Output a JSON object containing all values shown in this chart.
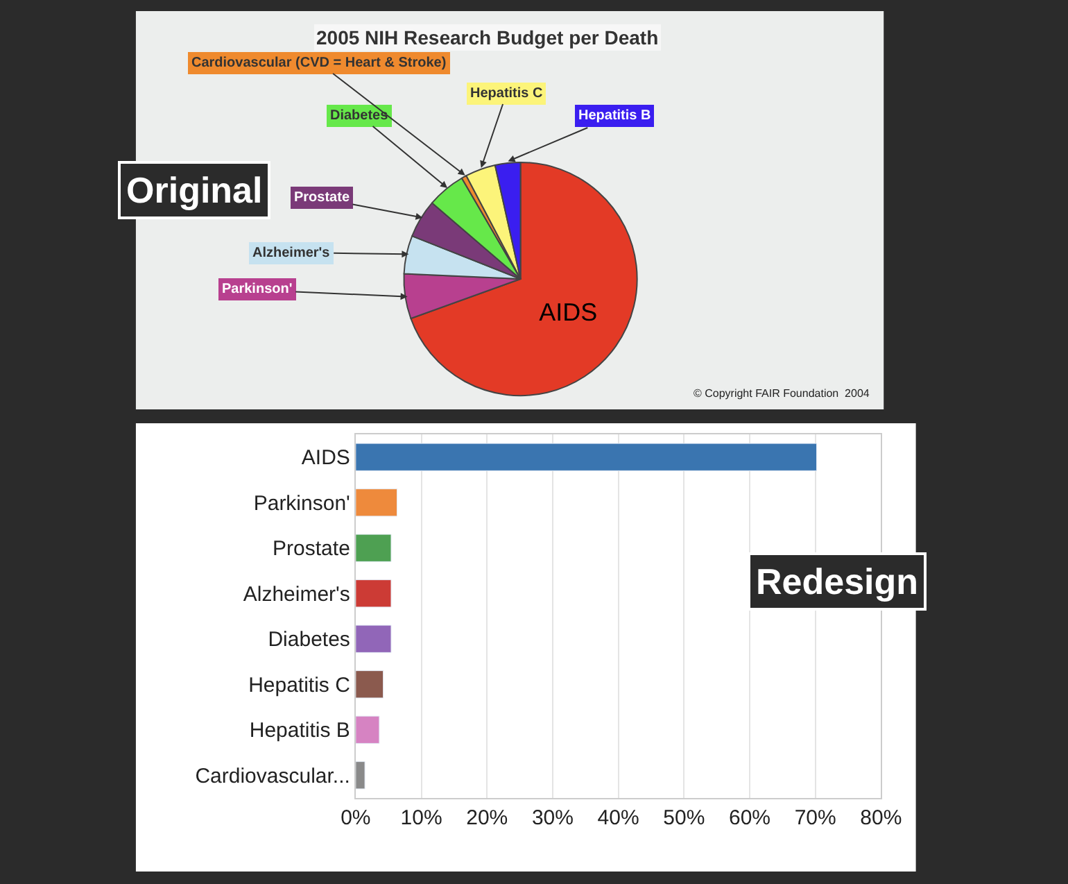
{
  "chart_data": [
    {
      "type": "pie",
      "title": "2005 NIH Research Budget per Death",
      "categories": [
        "AIDS",
        "Parkinson'",
        "Alzheimer's",
        "Prostate",
        "Diabetes",
        "Cardiovascular (CVD = Heart & Stroke)",
        "Hepatitis C",
        "Hepatitis B"
      ],
      "values": [
        69.5,
        6.2,
        5.3,
        5.3,
        5.3,
        0.7,
        4.2,
        3.5
      ],
      "colors": [
        "#e33a26",
        "#b8408f",
        "#c6e2f0",
        "#7a3a78",
        "#66e84a",
        "#ef8a2e",
        "#fcf47a",
        "#3a1ef0"
      ],
      "annotations": [
        "Original",
        "© Copyright FAIR Foundation  2004"
      ]
    },
    {
      "type": "bar",
      "orientation": "horizontal",
      "categories": [
        "AIDS",
        "Parkinson'",
        "Prostate",
        "Alzheimer's",
        "Diabetes",
        "Hepatitis C",
        "Hepatitis B",
        "Cardiovascular..."
      ],
      "values": [
        70.2,
        6.3,
        5.4,
        5.4,
        5.4,
        4.2,
        3.6,
        1.4
      ],
      "colors": [
        "#3a75b0",
        "#ee8a3c",
        "#4ea052",
        "#cc3b35",
        "#9166b8",
        "#8b5a4e",
        "#d683c2",
        "#8a8a8a"
      ],
      "xlim": [
        0,
        80
      ],
      "xticks": [
        {
          "value": 0,
          "label": "0%"
        },
        {
          "value": 10,
          "label": "10%"
        },
        {
          "value": 20,
          "label": "20%"
        },
        {
          "value": 30,
          "label": "30%"
        },
        {
          "value": 40,
          "label": "40%"
        },
        {
          "value": 50,
          "label": "50%"
        },
        {
          "value": 60,
          "label": "60%"
        },
        {
          "value": 70,
          "label": "70%"
        },
        {
          "value": 80,
          "label": "80%"
        }
      ],
      "grid": "x",
      "annotations": [
        "Redesign"
      ]
    }
  ]
}
